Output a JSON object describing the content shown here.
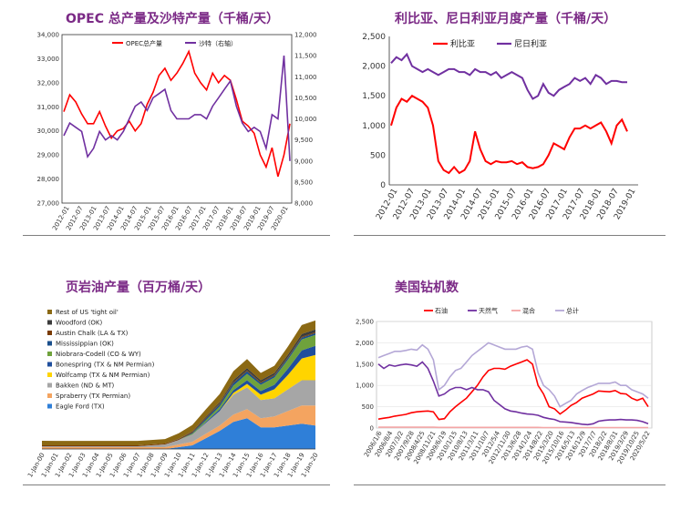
{
  "chart_data": [
    {
      "id": "opec",
      "type": "line",
      "title": "OPEC 总产量及沙特产量（千桶/天）",
      "x_labels": [
        "2012-01",
        "2012-07",
        "2013-01",
        "2013-07",
        "2014-01",
        "2014-07",
        "2015-01",
        "2015-07",
        "2016-01",
        "2016-07",
        "2017-01",
        "2017-07",
        "2018-01",
        "2018-07",
        "2019-01",
        "2019-07",
        "2020-01"
      ],
      "ylim_left": [
        27000,
        34000
      ],
      "yticks_left": [
        "27,000",
        "28,000",
        "29,000",
        "30,000",
        "31,000",
        "32,000",
        "33,000",
        "34,000"
      ],
      "ylim_right": [
        8000,
        12000
      ],
      "yticks_right": [
        "8,000",
        "8,500",
        "9,000",
        "9,500",
        "10,000",
        "10,500",
        "11,000",
        "11,500",
        "12,000"
      ],
      "series": [
        {
          "name": "OPEC总产量",
          "axis": "left",
          "color": "#ff0000",
          "values": [
            30800,
            31500,
            31200,
            30700,
            30300,
            30300,
            30800,
            30200,
            29700,
            30000,
            30100,
            30400,
            30000,
            30300,
            31100,
            31600,
            32300,
            32600,
            32100,
            32400,
            32800,
            33300,
            32400,
            32000,
            31700,
            32400,
            32000,
            32300,
            32100,
            31300,
            30400,
            30200,
            29900,
            29000,
            28500,
            29300,
            28100,
            29000,
            30300
          ]
        },
        {
          "name": "沙特（右轴）",
          "axis": "right",
          "color": "#7030a0",
          "values": [
            9600,
            9900,
            9800,
            9700,
            9100,
            9300,
            9700,
            9500,
            9600,
            9500,
            9700,
            10000,
            10300,
            10400,
            10200,
            10500,
            10600,
            10700,
            10200,
            10000,
            10000,
            10000,
            10100,
            10100,
            10000,
            10300,
            10500,
            10700,
            10900,
            10300,
            9900,
            9700,
            9800,
            9700,
            9300,
            10100,
            10000,
            11500,
            9000
          ]
        }
      ]
    },
    {
      "id": "libya_nigeria",
      "type": "line",
      "title": "利比亚、尼日利亚月度产量（千桶/天）",
      "x_labels": [
        "2012-01",
        "2012-07",
        "2013-01",
        "2013-07",
        "2014-01",
        "2014-07",
        "2015-01",
        "2015-07",
        "2016-01",
        "2016-07",
        "2017-01",
        "2017-07",
        "2018-01",
        "2018-07",
        "2019-01"
      ],
      "ylim": [
        0,
        2500
      ],
      "yticks": [
        "0",
        "500",
        "1,000",
        "1,500",
        "2,000",
        "2,500"
      ],
      "series": [
        {
          "name": "利比亚",
          "color": "#ff0000",
          "values": [
            1000,
            1300,
            1450,
            1400,
            1500,
            1450,
            1400,
            1300,
            1000,
            400,
            250,
            200,
            300,
            200,
            250,
            400,
            900,
            600,
            400,
            350,
            400,
            380,
            380,
            400,
            350,
            380,
            300,
            280,
            300,
            350,
            500,
            700,
            650,
            600,
            800,
            950,
            950,
            1000,
            950,
            1000,
            1050,
            900,
            700,
            1000,
            1100,
            900
          ]
        },
        {
          "name": "尼日利亚",
          "color": "#7030a0",
          "values": [
            2050,
            2150,
            2100,
            2200,
            2000,
            1950,
            1900,
            1950,
            1900,
            1850,
            1900,
            1950,
            1950,
            1900,
            1900,
            1850,
            1950,
            1900,
            1900,
            1850,
            1900,
            1800,
            1850,
            1900,
            1850,
            1800,
            1600,
            1450,
            1500,
            1700,
            1550,
            1500,
            1600,
            1650,
            1700,
            1800,
            1750,
            1800,
            1700,
            1850,
            1800,
            1700,
            1750,
            1750,
            1730,
            1730
          ]
        }
      ]
    },
    {
      "id": "shale",
      "type": "area",
      "title": "页岩油产量（百万桶/天）",
      "x_labels": [
        "1-Jan-00",
        "1-Jan-01",
        "1-Jan-02",
        "1-Jan-03",
        "1-Jan-04",
        "1-Jan-05",
        "1-Jan-06",
        "1-Jan-07",
        "1-Jan-08",
        "1-Jan-09",
        "1-Jan-10",
        "1-Jan-11",
        "1-Jan-12",
        "1-Jan-13",
        "1-Jan-14",
        "1-Jan-15",
        "1-Jan-16",
        "1-Jan-17",
        "1-Jan-18",
        "1-Jan-19",
        "1-Jan-20"
      ],
      "series": [
        {
          "name": "Eagle Ford (TX)",
          "color": "#2f7fd8",
          "values": [
            0,
            0,
            0,
            0,
            0,
            0,
            0,
            0,
            0,
            0,
            0.1,
            0.2,
            0.6,
            1.0,
            1.5,
            1.7,
            1.2,
            1.2,
            1.3,
            1.4,
            1.3
          ]
        },
        {
          "name": "Spraberry (TX Permian)",
          "color": "#f4a460",
          "values": [
            0.1,
            0.1,
            0.1,
            0.1,
            0.1,
            0.1,
            0.1,
            0.1,
            0.1,
            0.1,
            0.15,
            0.2,
            0.25,
            0.3,
            0.4,
            0.5,
            0.5,
            0.6,
            0.8,
            1.0,
            1.1
          ]
        },
        {
          "name": "Bakken (ND & MT)",
          "color": "#a6a6a6",
          "values": [
            0.05,
            0.05,
            0.05,
            0.05,
            0.05,
            0.05,
            0.05,
            0.05,
            0.1,
            0.15,
            0.25,
            0.4,
            0.6,
            0.8,
            1.1,
            1.2,
            1.0,
            1.0,
            1.2,
            1.4,
            1.4
          ]
        },
        {
          "name": "Wolfcamp (TX & NM Permian)",
          "color": "#ffd400",
          "values": [
            0,
            0,
            0,
            0,
            0,
            0,
            0,
            0,
            0,
            0,
            0,
            0,
            0,
            0,
            0.1,
            0.2,
            0.3,
            0.5,
            0.8,
            1.2,
            1.4
          ]
        },
        {
          "name": "Bonespring (TX & NM Permian)",
          "color": "#1f4e9d",
          "values": [
            0,
            0,
            0,
            0,
            0,
            0,
            0,
            0,
            0,
            0,
            0,
            0,
            0.05,
            0.1,
            0.15,
            0.2,
            0.2,
            0.25,
            0.35,
            0.45,
            0.5
          ]
        },
        {
          "name": "Niobrara-Codell (CO & WY)",
          "color": "#6fa23c",
          "values": [
            0,
            0,
            0,
            0,
            0,
            0,
            0,
            0,
            0,
            0,
            0,
            0.05,
            0.1,
            0.15,
            0.25,
            0.35,
            0.35,
            0.4,
            0.5,
            0.6,
            0.6
          ]
        },
        {
          "name": "Mississippian (OK)",
          "color": "#1a4f8c",
          "values": [
            0,
            0,
            0,
            0,
            0,
            0,
            0,
            0,
            0,
            0,
            0,
            0.05,
            0.1,
            0.12,
            0.15,
            0.15,
            0.1,
            0.1,
            0.1,
            0.1,
            0.1
          ]
        },
        {
          "name": "Austin Chalk (LA & TX)",
          "color": "#7a3b00",
          "values": [
            0.05,
            0.05,
            0.05,
            0.05,
            0.05,
            0.05,
            0.05,
            0.05,
            0.05,
            0.05,
            0.05,
            0.05,
            0.05,
            0.05,
            0.05,
            0.05,
            0.05,
            0.05,
            0.05,
            0.05,
            0.05
          ]
        },
        {
          "name": "Woodford (OK)",
          "color": "#3b3b3b",
          "values": [
            0,
            0,
            0,
            0,
            0,
            0,
            0,
            0,
            0,
            0,
            0.02,
            0.03,
            0.05,
            0.07,
            0.1,
            0.12,
            0.1,
            0.1,
            0.12,
            0.15,
            0.15
          ]
        },
        {
          "name": "Rest of US 'tight oil'",
          "color": "#8b6914",
          "values": [
            0.25,
            0.25,
            0.25,
            0.25,
            0.25,
            0.25,
            0.25,
            0.25,
            0.25,
            0.25,
            0.3,
            0.35,
            0.4,
            0.45,
            0.5,
            0.5,
            0.4,
            0.4,
            0.45,
            0.5,
            0.5
          ]
        }
      ]
    },
    {
      "id": "rigs",
      "type": "line",
      "title": "美国钻机数",
      "x_labels": [
        "2006/1/6",
        "2006/8/4",
        "2007/3/2",
        "2007/9/28",
        "2008/4/25",
        "2008/11/21",
        "2009/6/19",
        "2010/1/15",
        "2010/8/13",
        "2011/3/11",
        "2011/10/7",
        "2012/5/4",
        "2012/11/30",
        "2013/6/28",
        "2014/1/24",
        "2014/8/22",
        "2015/3/20",
        "2015/10/16",
        "2016/5/13",
        "2016/12/9",
        "2017/7/7",
        "2018/2/2",
        "2018/8/31",
        "2019/3/29",
        "2019/10/25",
        "2020/5/22"
      ],
      "ylim": [
        0,
        2500
      ],
      "yticks": [
        "0",
        "500",
        "1,000",
        "1,500",
        "2,000",
        "2,500"
      ],
      "series": [
        {
          "name": "石油",
          "color": "#ff0000",
          "values": [
            210,
            230,
            250,
            280,
            300,
            320,
            360,
            380,
            390,
            400,
            380,
            200,
            220,
            380,
            500,
            600,
            700,
            850,
            1000,
            1200,
            1350,
            1400,
            1400,
            1380,
            1450,
            1500,
            1550,
            1600,
            1500,
            1000,
            800,
            500,
            450,
            330,
            420,
            530,
            600,
            700,
            750,
            800,
            870,
            860,
            850,
            880,
            810,
            800,
            700,
            650,
            700,
            500
          ]
        },
        {
          "name": "天然气",
          "color": "#7030a0",
          "values": [
            1500,
            1400,
            1480,
            1450,
            1480,
            1500,
            1480,
            1450,
            1550,
            1400,
            1100,
            750,
            800,
            900,
            950,
            950,
            900,
            950,
            900,
            900,
            850,
            650,
            550,
            450,
            400,
            380,
            350,
            330,
            320,
            300,
            250,
            220,
            200,
            150,
            140,
            130,
            110,
            90,
            80,
            100,
            160,
            180,
            190,
            190,
            200,
            190,
            190,
            180,
            150,
            100
          ]
        },
        {
          "name": "混合",
          "color": "#f4a6a6",
          "values": [
            20,
            20,
            20,
            20,
            20,
            20,
            20,
            20,
            20,
            20,
            20,
            15,
            15,
            15,
            15,
            15,
            15,
            15,
            15,
            15,
            15,
            15,
            15,
            15,
            15,
            15,
            15,
            15,
            15,
            15,
            10,
            10,
            10,
            10,
            10,
            10,
            10,
            10,
            10,
            10,
            10,
            10,
            10,
            10,
            10,
            10,
            10,
            10,
            10,
            10
          ]
        },
        {
          "name": "总计",
          "color": "#b4a7d6",
          "values": [
            1650,
            1700,
            1750,
            1800,
            1800,
            1820,
            1850,
            1830,
            1950,
            1850,
            1600,
            900,
            1000,
            1200,
            1350,
            1400,
            1550,
            1700,
            1800,
            1900,
            2000,
            1950,
            1900,
            1850,
            1850,
            1850,
            1900,
            1920,
            1850,
            1300,
            1000,
            900,
            750,
            500,
            580,
            650,
            800,
            880,
            950,
            1000,
            1050,
            1050,
            1050,
            1080,
            1000,
            1000,
            900,
            850,
            800,
            700
          ]
        }
      ]
    }
  ]
}
